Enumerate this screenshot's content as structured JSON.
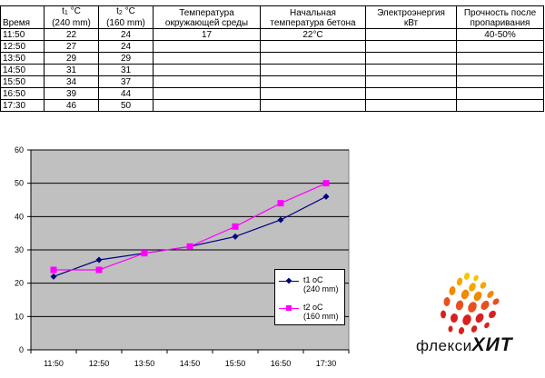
{
  "table": {
    "headers": {
      "time": "Время",
      "t1_symbol": "t",
      "t1_sub": "1",
      "t1_unit": "°C",
      "t1_note": "(240 mm)",
      "t2_symbol": "t",
      "t2_sub": "2",
      "t2_unit": "°C",
      "t2_note": "(160 mm)",
      "ambient_line1": "Температура",
      "ambient_line2": "окружающей среды",
      "concrete_line1": "Начальная",
      "concrete_line2": "температура бетона",
      "energy_line1": "Электроэнергия",
      "energy_line2": "кВт",
      "strength_line1": "Прочность после",
      "strength_line2": "пропаривания"
    },
    "rows": [
      {
        "time": "11:50",
        "t1": "22",
        "t2": "24",
        "ambient": "17",
        "concrete": "22",
        "concrete_unit": "°C",
        "energy": "",
        "strength": "40-50%"
      },
      {
        "time": "12:50",
        "t1": "27",
        "t2": "24",
        "ambient": "",
        "concrete": "",
        "concrete_unit": "",
        "energy": "",
        "strength": ""
      },
      {
        "time": "13:50",
        "t1": "29",
        "t2": "29",
        "ambient": "",
        "concrete": "",
        "concrete_unit": "",
        "energy": "",
        "strength": ""
      },
      {
        "time": "14:50",
        "t1": "31",
        "t2": "31",
        "ambient": "",
        "concrete": "",
        "concrete_unit": "",
        "energy": "",
        "strength": ""
      },
      {
        "time": "15:50",
        "t1": "34",
        "t2": "37",
        "ambient": "",
        "concrete": "",
        "concrete_unit": "",
        "energy": "",
        "strength": ""
      },
      {
        "time": "16:50",
        "t1": "39",
        "t2": "44",
        "ambient": "",
        "concrete": "",
        "concrete_unit": "",
        "energy": "",
        "strength": ""
      },
      {
        "time": "17:30",
        "t1": "46",
        "t2": "50",
        "ambient": "",
        "concrete": "",
        "concrete_unit": "",
        "energy": "",
        "strength": ""
      }
    ]
  },
  "chart_data": {
    "type": "line",
    "categories": [
      "11:50",
      "12:50",
      "13:50",
      "14:50",
      "15:50",
      "16:50",
      "17:30"
    ],
    "ylim": [
      0,
      60
    ],
    "yticks": [
      0,
      10,
      20,
      30,
      40,
      50,
      60
    ],
    "grid": true,
    "plot_background": "#c0c0c0",
    "legend_position": "right",
    "series": [
      {
        "name": "t1  oC",
        "note": "(240 mm)",
        "color": "#000080",
        "marker": "diamond",
        "values": [
          22,
          27,
          29,
          31,
          34,
          39,
          46
        ]
      },
      {
        "name": "t2  oC",
        "note": "(160 mm)",
        "color": "#ff00ff",
        "marker": "square",
        "values": [
          24,
          24,
          29,
          31,
          37,
          44,
          50
        ]
      }
    ]
  },
  "logo": {
    "text_regular": "флекси",
    "text_bold": "ХИТ",
    "colors": [
      "#f7a600",
      "#f08a00",
      "#e8501e",
      "#d8201e",
      "#f5c400"
    ]
  }
}
